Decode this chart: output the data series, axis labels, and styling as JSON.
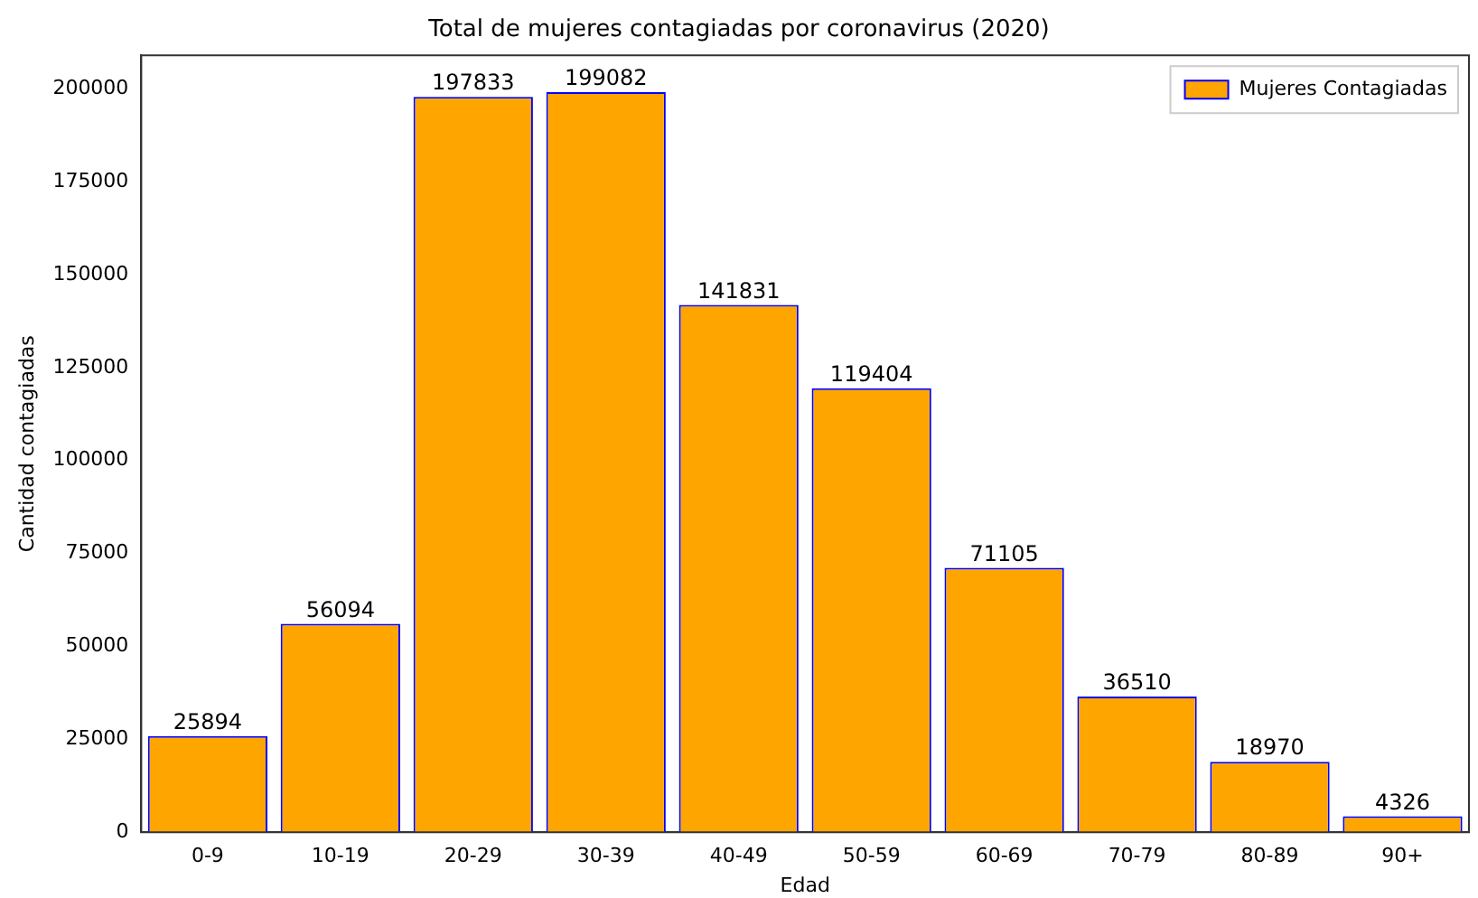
{
  "chart_data": {
    "type": "bar",
    "title": "Total de mujeres contagiadas por coronavirus (2020)",
    "xlabel": "Edad",
    "ylabel": "Cantidad contagiadas",
    "categories": [
      "0-9",
      "10-19",
      "20-29",
      "30-39",
      "40-49",
      "50-59",
      "60-69",
      "70-79",
      "80-89",
      "90+"
    ],
    "series": [
      {
        "name": "Mujeres Contagiadas",
        "color": "#ffa500",
        "values": [
          25894,
          56094,
          197833,
          199082,
          141831,
          119404,
          71105,
          36510,
          18970,
          4326
        ]
      }
    ],
    "ylim": [
      0,
      209000
    ],
    "yticks": [
      0,
      25000,
      50000,
      75000,
      100000,
      125000,
      150000,
      175000,
      200000
    ],
    "data_labels": true,
    "legend": "top right",
    "grid": false
  }
}
